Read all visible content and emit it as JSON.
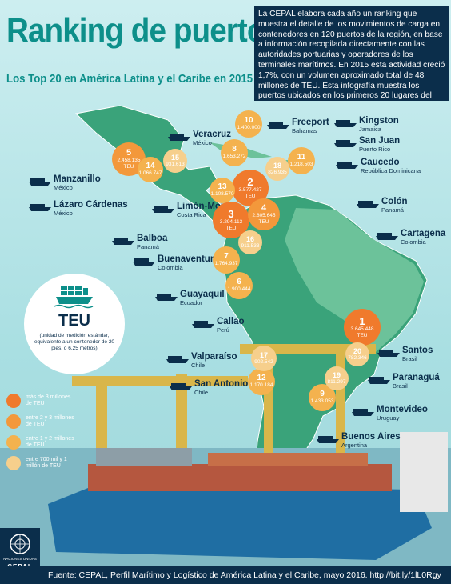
{
  "header": {
    "title": "Ranking de puertos",
    "subtitle": "Los Top 20 en América Latina y el Caribe en 2015",
    "intro": "La CEPAL elabora cada año un ranking que muestra el detalle de los movimientos de carga en contenedores en 120 puertos de la región, en base a información recopilada directamente con las autoridades portuarias y operadores de los terminales marítimos. En 2015 esta actividad creció 1,7%, con un volumen aproximado total de 48 millones de TEU. Esta infografía muestra los puertos ubicados en los primeros 20 lugares del ranking."
  },
  "colors": {
    "tier1": "#f07a2c",
    "tier2": "#f3983b",
    "tier3": "#f4b24e",
    "tier4": "#f6cf8c",
    "dark": "#0b2e4b",
    "teal": "#0d8f8a",
    "land": "#3aa37a",
    "land_light": "#6cc29a"
  },
  "ports": [
    {
      "rank": "1",
      "teu": "3.645.448",
      "unit": "TEU",
      "name": "",
      "country": "",
      "tier": "tier1"
    },
    {
      "rank": "2",
      "teu": "3.577.427",
      "unit": "TEU",
      "name": "",
      "country": "",
      "tier": "tier1"
    },
    {
      "rank": "3",
      "teu": "3.294.113",
      "unit": "TEU",
      "name": "",
      "country": "",
      "tier": "tier1"
    },
    {
      "rank": "4",
      "teu": "2.805.645",
      "unit": "TEU",
      "name": "",
      "country": "",
      "tier": "tier2"
    },
    {
      "rank": "5",
      "teu": "2.458.135",
      "unit": "TEU",
      "name": "",
      "country": "",
      "tier": "tier2"
    },
    {
      "rank": "6",
      "teu": "1.900.444",
      "unit": "",
      "name": "",
      "country": "",
      "tier": "tier3"
    },
    {
      "rank": "7",
      "teu": "1.764.937",
      "unit": "",
      "name": "",
      "country": "",
      "tier": "tier3"
    },
    {
      "rank": "8",
      "teu": "1.653.272",
      "unit": "",
      "name": "",
      "country": "",
      "tier": "tier3"
    },
    {
      "rank": "9",
      "teu": "1.433.053",
      "unit": "",
      "name": "",
      "country": "",
      "tier": "tier3"
    },
    {
      "rank": "10",
      "teu": "1.400.000",
      "unit": "",
      "name": "",
      "country": "",
      "tier": "tier3"
    },
    {
      "rank": "11",
      "teu": "1.218.503",
      "unit": "",
      "name": "",
      "country": "",
      "tier": "tier3"
    },
    {
      "rank": "12",
      "teu": "1.170.184",
      "unit": "",
      "name": "",
      "country": "",
      "tier": "tier3"
    },
    {
      "rank": "13",
      "teu": "1.108.570",
      "unit": "",
      "name": "",
      "country": "",
      "tier": "tier3"
    },
    {
      "rank": "14",
      "teu": "1.066.747",
      "unit": "",
      "name": "",
      "country": "",
      "tier": "tier3"
    },
    {
      "rank": "15",
      "teu": "931.613",
      "unit": "",
      "name": "",
      "country": "",
      "tier": "tier4"
    },
    {
      "rank": "16",
      "teu": "911.533",
      "unit": "",
      "name": "",
      "country": "",
      "tier": "tier4"
    },
    {
      "rank": "17",
      "teu": "902.542",
      "unit": "",
      "name": "",
      "country": "",
      "tier": "tier4"
    },
    {
      "rank": "18",
      "teu": "826.935",
      "unit": "",
      "name": "",
      "country": "",
      "tier": "tier4"
    },
    {
      "rank": "19",
      "teu": "811.297",
      "unit": "",
      "name": "",
      "country": "",
      "tier": "tier4"
    },
    {
      "rank": "20",
      "teu": "782.346",
      "unit": "",
      "name": "",
      "country": "",
      "tier": "tier4"
    }
  ],
  "labels": [
    {
      "name": "Veracruz",
      "country": "México"
    },
    {
      "name": "Freeport",
      "country": "Bahamas"
    },
    {
      "name": "Kingston",
      "country": "Jamaica"
    },
    {
      "name": "San Juan",
      "country": "Puerto Rico"
    },
    {
      "name": "Caucedo",
      "country": "República Dominicana"
    },
    {
      "name": "Manzanillo",
      "country": "México"
    },
    {
      "name": "Lázaro Cárdenas",
      "country": "México"
    },
    {
      "name": "Limón-Moín",
      "country": "Costa Rica"
    },
    {
      "name": "Colón",
      "country": "Panamá"
    },
    {
      "name": "Balboa",
      "country": "Panamá"
    },
    {
      "name": "Cartagena",
      "country": "Colombia"
    },
    {
      "name": "Buenaventura",
      "country": "Colombia"
    },
    {
      "name": "Guayaquil",
      "country": "Ecuador"
    },
    {
      "name": "Callao",
      "country": "Perú"
    },
    {
      "name": "Santos",
      "country": "Brasil"
    },
    {
      "name": "Valparaíso",
      "country": "Chile"
    },
    {
      "name": "Paranaguá",
      "country": "Brasil"
    },
    {
      "name": "San Antonio",
      "country": "Chile"
    },
    {
      "name": "Montevideo",
      "country": "Uruguay"
    },
    {
      "name": "Buenos Aires",
      "country": "Argentina"
    }
  ],
  "teu_info": {
    "title": "TEU",
    "description": "(unidad de medición estándar, equivalente a un contenedor de 20 pies, o 6,25 metros)"
  },
  "legend": [
    {
      "text": "más de 3 millones de TEU",
      "tier": "tier1"
    },
    {
      "text": "entre 2 y 3 millones de TEU",
      "tier": "tier2"
    },
    {
      "text": "entre 1 y 2 millones de TEU",
      "tier": "tier3"
    },
    {
      "text": "entre 700 mil y 1 millón de TEU",
      "tier": "tier4"
    }
  ],
  "footer": {
    "source": "Fuente: CEPAL, Perfil Marítimo y Logístico de América Latina y el Caribe, mayo 2016. http://bit.ly/1lL0Rgy"
  },
  "logo": {
    "un_label": "NACIONES UNIDAS",
    "cepal": "CEPAL"
  }
}
